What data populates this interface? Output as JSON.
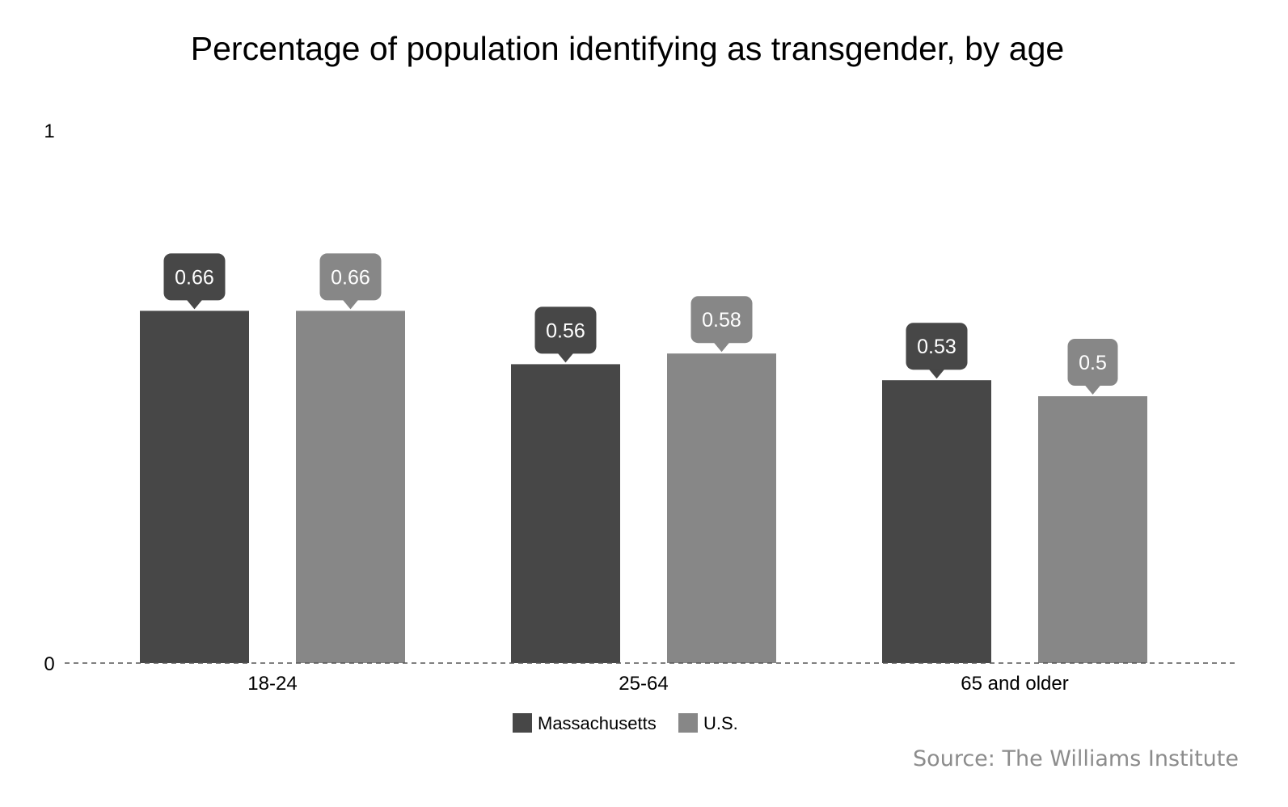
{
  "chart_data": {
    "type": "bar",
    "title": "Percentage of population identifying as transgender, by age",
    "categories": [
      "18-24",
      "25-64",
      "65 and older"
    ],
    "series": [
      {
        "name": "Massachusetts",
        "values": [
          0.66,
          0.56,
          0.53
        ],
        "color": "#474747"
      },
      {
        "name": "U.S.",
        "values": [
          0.66,
          0.58,
          0.5
        ],
        "color": "#878787"
      }
    ],
    "data_labels": [
      [
        "0.66",
        "0.56",
        "0.53"
      ],
      [
        "0.66",
        "0.58",
        "0.5"
      ]
    ],
    "ylim": [
      0,
      1
    ],
    "yticks": [
      "0",
      "1"
    ],
    "xlabel": "",
    "ylabel": "",
    "grid": false,
    "baseline_style": "dashed",
    "legend_position": "bottom-center",
    "source": "Source: The Williams Institute"
  }
}
